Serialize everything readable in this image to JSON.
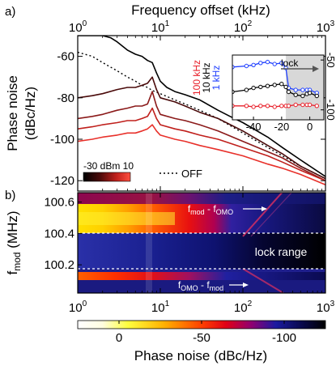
{
  "panel_a": {
    "label": "a)"
  },
  "panel_b": {
    "label": "b)"
  },
  "chart_data": [
    {
      "id": "phase-noise-spectrum",
      "type": "line",
      "title": "",
      "xlabel": "Frequency offset (kHz)",
      "ylabel": "Phase noise (dBc/Hz)",
      "xscale": "log",
      "xlim": [
        1,
        1000
      ],
      "ylim": [
        -125,
        -50
      ],
      "x_ticks": [
        "10^0",
        "10^1",
        "10^2",
        "10^3"
      ],
      "y_ticks": [
        -60,
        -80,
        -100,
        -120
      ],
      "colorbar_label": "-30 dBm 10",
      "legend_off": "OFF",
      "series": [
        {
          "name": "OFF",
          "style": "dotted",
          "color": "#000000",
          "x": [
            1,
            1.5,
            2,
            3,
            4,
            5,
            6,
            7,
            8,
            10,
            15,
            20,
            30,
            50,
            100,
            200,
            300,
            500,
            1000
          ],
          "y": [
            -58,
            -60,
            -63,
            -67,
            -70,
            -72,
            -74,
            -75,
            -76.5,
            -78,
            -81,
            -83,
            -86,
            -90,
            -97,
            -104,
            -108,
            -113,
            -119
          ]
        },
        {
          "color": "#000000",
          "x": [
            1,
            1.5,
            2,
            2.5,
            3,
            4,
            5,
            6,
            7,
            8,
            9,
            10,
            12,
            15,
            20,
            30,
            50,
            70,
            100,
            200,
            300,
            500,
            1000
          ],
          "y": [
            -50,
            -50,
            -50,
            -51,
            -53,
            -57,
            -59,
            -60,
            -62,
            -63,
            -68,
            -72,
            -75,
            -77,
            -78.5,
            -81,
            -86,
            -89,
            -92,
            -99,
            -104,
            -110,
            -118
          ]
        },
        {
          "color": "#4a0a0a",
          "x": [
            1,
            1.5,
            2,
            3,
            4,
            5,
            6,
            7,
            8,
            9,
            10,
            15,
            20,
            30,
            50,
            100,
            200,
            300,
            500,
            1000
          ],
          "y": [
            -80,
            -79,
            -78,
            -76,
            -75,
            -75,
            -74,
            -73,
            -70,
            -76,
            -80,
            -82,
            -84,
            -87,
            -90,
            -96,
            -103,
            -107,
            -113,
            -119
          ]
        },
        {
          "color": "#8b1a1a",
          "x": [
            1,
            1.5,
            2,
            3,
            4,
            5,
            6,
            7,
            8,
            9,
            10,
            15,
            20,
            30,
            50,
            100,
            200,
            300,
            500,
            1000
          ],
          "y": [
            -90,
            -89,
            -88,
            -86,
            -85,
            -84,
            -84,
            -83,
            -77,
            -84,
            -88,
            -90,
            -91,
            -93,
            -96,
            -101,
            -106,
            -109,
            -114,
            -120
          ]
        },
        {
          "color": "#c0201c",
          "x": [
            1,
            1.5,
            2,
            3,
            4,
            5,
            6,
            7,
            8,
            9,
            10,
            15,
            20,
            30,
            50,
            100,
            200,
            300,
            500,
            1000
          ],
          "y": [
            -95,
            -94,
            -93,
            -92,
            -91,
            -91,
            -90,
            -89,
            -85,
            -90,
            -93,
            -95,
            -96,
            -98,
            -100,
            -104,
            -108,
            -111,
            -115,
            -120
          ]
        },
        {
          "color": "#e8302a",
          "x": [
            1,
            1.5,
            2,
            3,
            4,
            5,
            6,
            7,
            8,
            9,
            10,
            15,
            20,
            30,
            50,
            100,
            200,
            300,
            500,
            1000
          ],
          "y": [
            -101,
            -100,
            -99,
            -98,
            -97,
            -97,
            -96,
            -95,
            -93,
            -96,
            -98,
            -100,
            -101,
            -103,
            -105,
            -108,
            -112,
            -114,
            -117,
            -122
          ]
        }
      ]
    },
    {
      "id": "lock-inset",
      "type": "line",
      "title": "lock",
      "xlim": [
        -55,
        10
      ],
      "ylim": [
        -110,
        -45
      ],
      "x_ticks": [
        -40,
        -20,
        0
      ],
      "y_ticks": [
        -50,
        -100
      ],
      "shaded_region": [
        -17,
        10
      ],
      "series": [
        {
          "name": "1 kHz",
          "color": "#1f3fff",
          "x": [
            -55,
            -45,
            -40,
            -35,
            -30,
            -25,
            -20,
            -17,
            -15,
            -10,
            -5,
            -2,
            0,
            5
          ],
          "y": [
            -57,
            -56,
            -55,
            -53,
            -52,
            -54,
            -53,
            -58,
            -78,
            -80,
            -80,
            -80,
            -80,
            -83
          ]
        },
        {
          "name": "10 kHz",
          "color": "#000000",
          "x": [
            -55,
            -45,
            -40,
            -35,
            -30,
            -25,
            -20,
            -17,
            -15,
            -10,
            -5,
            -2,
            0,
            5
          ],
          "y": [
            -82,
            -80,
            -78,
            -77,
            -76,
            -75,
            -74,
            -77,
            -82,
            -85,
            -86,
            -84,
            -83,
            -86
          ]
        },
        {
          "name": "100 kHz",
          "color": "#e8202a",
          "x": [
            -55,
            -45,
            -40,
            -35,
            -30,
            -25,
            -20,
            -17,
            -15,
            -10,
            -5,
            -2,
            0,
            5
          ],
          "y": [
            -96,
            -96,
            -97,
            -96,
            -96,
            -97,
            -96,
            -96,
            -96,
            -95,
            -95,
            -95,
            -95,
            -96
          ]
        }
      ]
    },
    {
      "id": "phase-noise-map",
      "type": "heatmap",
      "xlabel": "",
      "ylabel": "f_mod (MHz)",
      "xscale": "log",
      "xlim": [
        1,
        1000
      ],
      "ylim": [
        100.02,
        100.66
      ],
      "x_ticks": [
        "10^0",
        "10^1",
        "10^2",
        "10^3"
      ],
      "y_ticks": [
        100.2,
        100.4,
        100.6
      ],
      "annotations": [
        "f_mod - f_OMO",
        "lock range",
        "f_OMO - f_mod"
      ],
      "colorbar": {
        "label": "Phase noise (dBc/Hz)",
        "ticks": [
          0,
          -50,
          -100
        ],
        "range": [
          25,
          -125
        ]
      }
    }
  ]
}
